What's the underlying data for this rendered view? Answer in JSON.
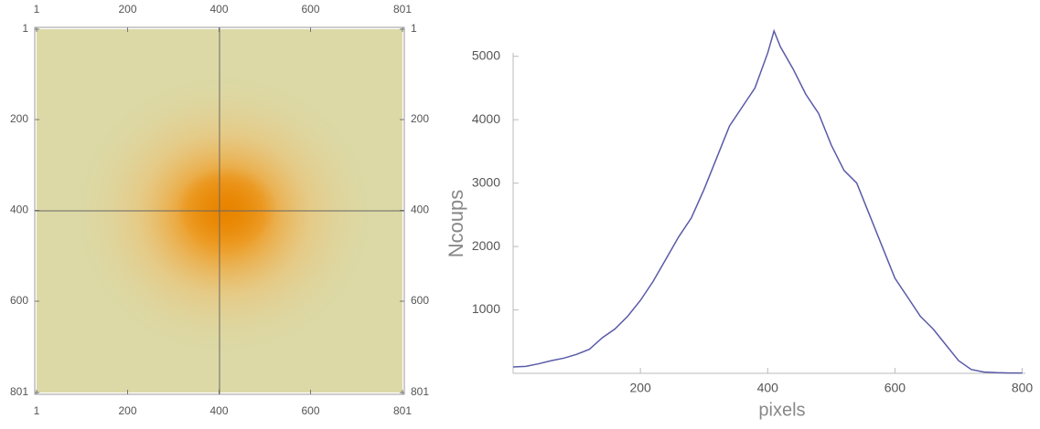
{
  "chart_data": [
    {
      "type": "image",
      "xlim": [
        1,
        801
      ],
      "ylim": [
        1,
        801
      ],
      "xticks": [
        1,
        200,
        400,
        600,
        801
      ],
      "yticks": [
        1,
        200,
        400,
        600,
        801
      ],
      "crosshair": [
        401,
        401
      ]
    },
    {
      "type": "line",
      "x_label": "pixels",
      "y_label": "Ncoups",
      "x": [
        0,
        20,
        40,
        60,
        80,
        100,
        120,
        140,
        160,
        180,
        200,
        220,
        240,
        260,
        280,
        300,
        320,
        340,
        360,
        380,
        400,
        410,
        420,
        440,
        460,
        480,
        500,
        520,
        540,
        560,
        580,
        600,
        620,
        640,
        660,
        680,
        700,
        720,
        740,
        760,
        780,
        800
      ],
      "values": [
        100,
        110,
        150,
        200,
        240,
        300,
        380,
        560,
        700,
        900,
        1150,
        1450,
        1800,
        2150,
        2450,
        2900,
        3400,
        3900,
        4200,
        4500,
        5050,
        5400,
        5150,
        4800,
        4400,
        4100,
        3600,
        3200,
        3000,
        2500,
        2000,
        1500,
        1200,
        900,
        700,
        450,
        200,
        60,
        20,
        10,
        5,
        5
      ],
      "color": "#5a5aa8",
      "xlim": [
        0,
        805
      ],
      "ylim": [
        0,
        5600
      ],
      "xticks": [
        200,
        400,
        600,
        800
      ],
      "yticks": [
        1000,
        2000,
        3000,
        4000,
        5000
      ]
    }
  ]
}
